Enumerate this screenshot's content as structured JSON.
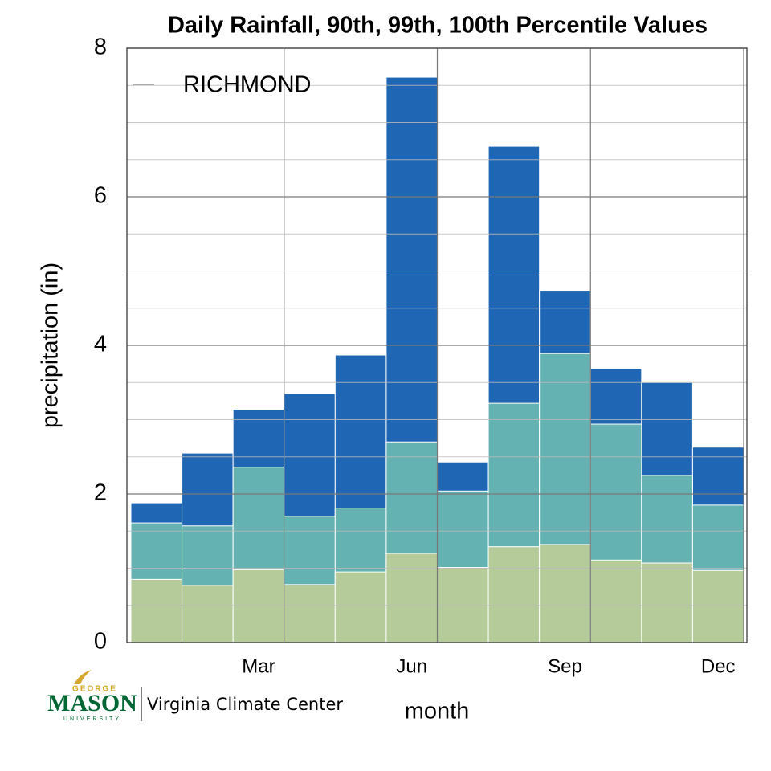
{
  "chart_data": {
    "type": "bar",
    "title": "Daily Rainfall, 90th, 99th, 100th Percentile Values",
    "x_label": "month",
    "y_label": "precipitation (in)",
    "legend_label": "RICHMOND",
    "categories": [
      null,
      null,
      "Mar",
      null,
      null,
      "Jun",
      null,
      null,
      "Sep",
      null,
      null,
      "Dec"
    ],
    "series": [
      {
        "color": "#1f67b4",
        "values": [
          1.88,
          2.55,
          3.14,
          3.35,
          3.87,
          7.61,
          2.43,
          6.68,
          4.74,
          3.69,
          3.5,
          2.63
        ]
      },
      {
        "color": "#64b3b2",
        "values": [
          1.61,
          1.57,
          2.36,
          1.7,
          1.81,
          2.7,
          2.04,
          3.22,
          3.89,
          2.94,
          2.25,
          1.85
        ]
      },
      {
        "color": "#b5cc9a",
        "values": [
          0.85,
          0.77,
          0.98,
          0.78,
          0.95,
          1.2,
          1.01,
          1.29,
          1.32,
          1.11,
          1.07,
          0.97
        ]
      }
    ],
    "ylim": [
      0,
      8
    ],
    "yticks": [
      0,
      2,
      4,
      6,
      8
    ],
    "minor_gridlines": [
      0.5,
      1,
      1.5,
      2.5,
      3,
      3.5,
      4.5,
      5,
      5.5,
      6.5,
      7,
      7.5
    ],
    "grid": true
  },
  "logo": {
    "top": "GEORGE",
    "name": "MASON",
    "bottom": "UNIVERSITY",
    "text": "Virginia Climate Center"
  }
}
